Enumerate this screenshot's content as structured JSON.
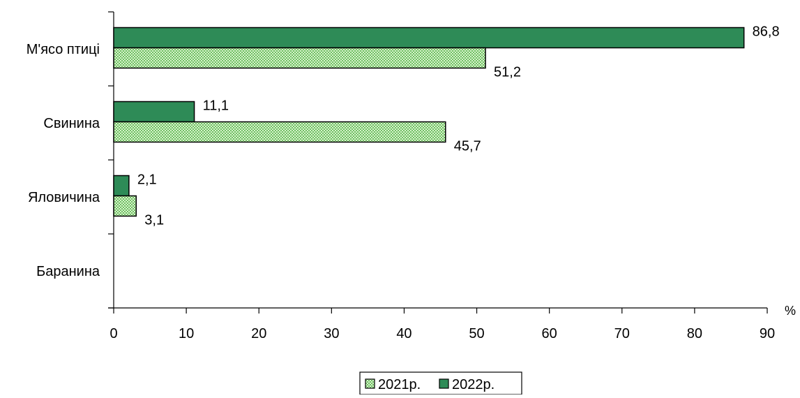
{
  "chart_data": {
    "type": "bar",
    "orientation": "horizontal",
    "categories": [
      "М'ясо птиці",
      "Свинина",
      "Яловичина",
      "Баранина"
    ],
    "series": [
      {
        "name": "2022р.",
        "values": [
          86.8,
          11.1,
          2.1,
          null
        ],
        "labels": [
          "86,8",
          "11,1",
          "2,1",
          ""
        ],
        "color": "#2e8b57",
        "pattern": "solid"
      },
      {
        "name": "2021р.",
        "values": [
          51.2,
          45.7,
          3.1,
          null
        ],
        "labels": [
          "51,2",
          "45,7",
          "3,1",
          ""
        ],
        "color": "#a8e39a",
        "pattern": "checker"
      }
    ],
    "xlim": [
      0,
      90
    ],
    "xticks": [
      "0",
      "10",
      "20",
      "30",
      "40",
      "50",
      "60",
      "70",
      "80",
      "90"
    ],
    "xunit": "%",
    "grid": false,
    "legend": {
      "position": "bottom",
      "entries": [
        "2021р.",
        "2022р."
      ]
    }
  }
}
